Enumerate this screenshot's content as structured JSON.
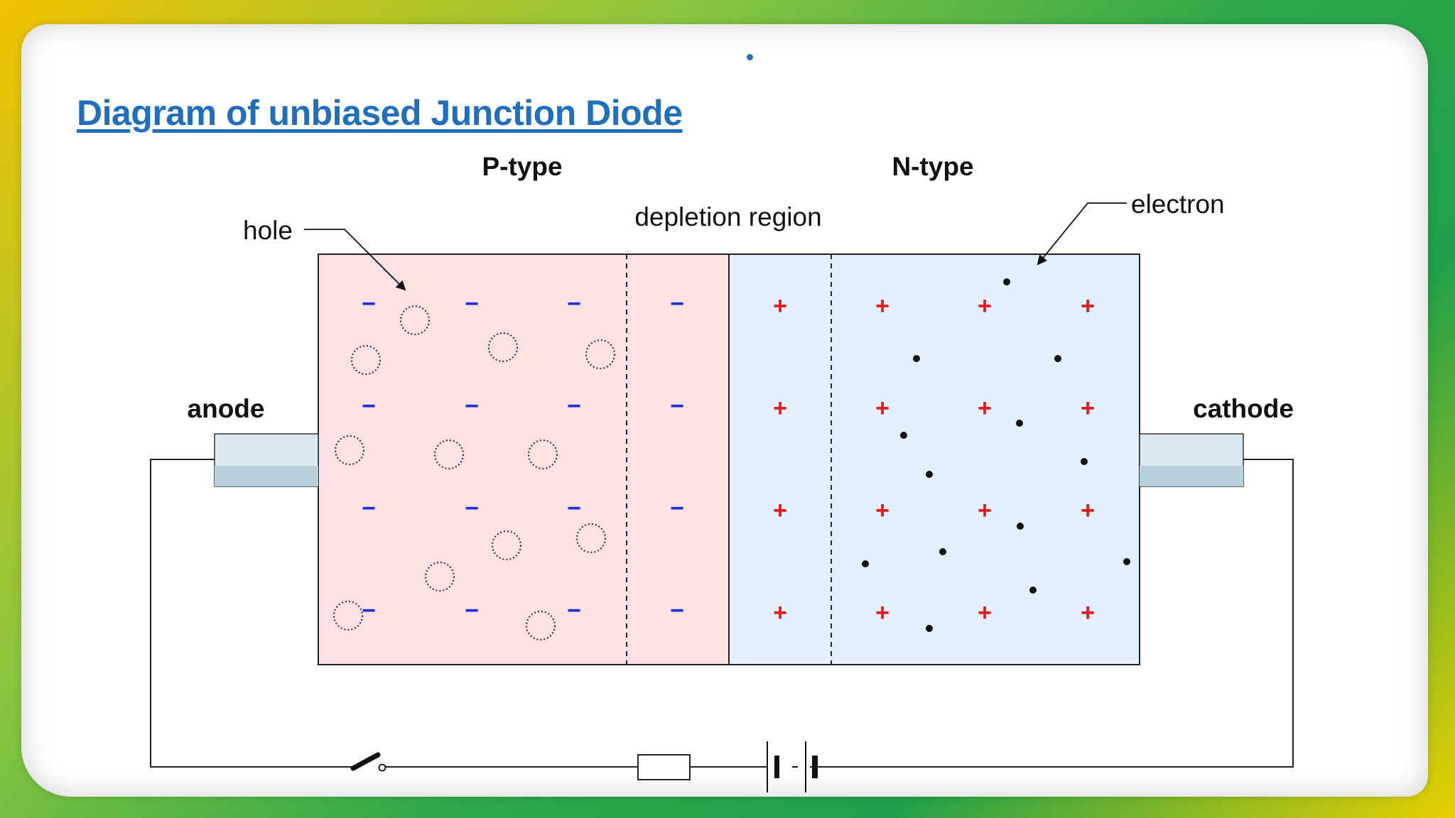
{
  "slide": {
    "title": "Diagram of unbiased Junction Diode"
  },
  "diagram": {
    "p_type_label": "P-type",
    "n_type_label": "N-type",
    "depletion_label": "depletion region",
    "hole_label": "hole",
    "electron_label": "electron",
    "anode_label": "anode",
    "cathode_label": "cathode",
    "negative_symbol": "−",
    "positive_symbol": "+",
    "colors": {
      "p_region": "#fde1e3",
      "n_region": "#e4f0fd",
      "negative": "#1a2fd8",
      "positive": "#e01c1c",
      "title": "#1f6fbe"
    }
  }
}
